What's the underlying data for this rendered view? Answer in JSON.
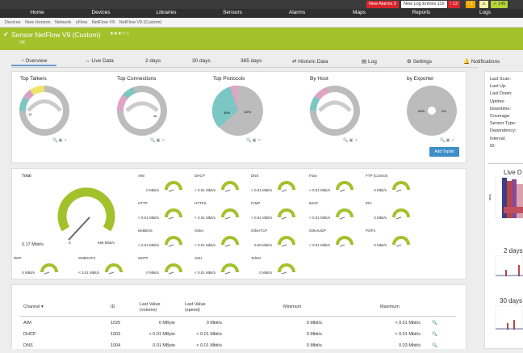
{
  "nav": {
    "items": [
      "Home",
      "Devices",
      "Libraries",
      "Sensors",
      "Alarms",
      "Maps",
      "Reports",
      "Logs"
    ]
  },
  "alarms": {
    "new_alarms_label": "New Alarms",
    "new_alarms_count": "2",
    "new_log_label": "New Log Entries",
    "new_log_count": "116",
    "red_count": "12",
    "yellow_count": "1",
    "green_count": "145"
  },
  "breadcrumb": [
    "Devices",
    "New Horizon",
    "Network",
    "sFlow",
    "NetFlow V9",
    "NetFlow V9 (Custom)"
  ],
  "sensor": {
    "title": "Sensor NetFlow V9 (Custom)",
    "status": "OK",
    "stars": "★★★☆☆",
    "accent": "#a3c12b"
  },
  "tabs": {
    "overview": "Overview",
    "live": "Live Data",
    "two_days": "2  days",
    "thirty_days": "30  days",
    "year": "365  days",
    "historic": "Historic Data",
    "log": "Log",
    "settings": "Settings",
    "notifications": "Notifications"
  },
  "toplists": {
    "top_talkers": "Top Talkers",
    "top_connections": "Top Connections",
    "top_protocols": "Top Protocols",
    "by_host": "By Host",
    "by_exporter": "by Exporter",
    "add_button": "Add Toplist",
    "pie_labels": {
      "talkers": "12",
      "connections": "4d",
      "protocols_a": "35%",
      "protocols_b": "62%",
      "exporter_a": "99%",
      "exporter_b": "0%"
    }
  },
  "side": {
    "labels": [
      "Last Scan:",
      "Last Up:",
      "Last Down:",
      "Uptime:",
      "Downtime:",
      "Coverage:",
      "Sensor Type:",
      "Dependency:",
      "Interval:",
      "ID:"
    ],
    "live_title": "Live D",
    "two_days": "2 days",
    "thirty_days": "30 days"
  },
  "gauges": {
    "total_label": "Total",
    "total_value": "0.17 Mbit/s",
    "total_min": "0",
    "total_max": "598 Mbit/s",
    "items": [
      {
        "name": "AIM",
        "value": "0 Mbit/s"
      },
      {
        "name": "DHCP",
        "value": "< 0.01 Mbit/s"
      },
      {
        "name": "DNS",
        "value": "< 0.01 Mbit/s"
      },
      {
        "name": "Flow",
        "value": "< 0.01 Mbit/s"
      },
      {
        "name": "FTP (Control)",
        "value": "0 Mbit/s"
      },
      {
        "name": "HTTP",
        "value": "< 0.01 Mbit/s"
      },
      {
        "name": "HTTPS",
        "value": "< 0.01 Mbit/s"
      },
      {
        "name": "ICMP",
        "value": "< 0.01 Mbit/s"
      },
      {
        "name": "IMAP",
        "value": "< 0.01 Mbit/s"
      },
      {
        "name": "IRC",
        "value": "0 Mbit/s"
      },
      {
        "name": "NetBIOS",
        "value": "< 0.01 Mbit/s"
      },
      {
        "name": "Other",
        "value": "< 0.01 Mbit/s"
      },
      {
        "name": "OtherTCP",
        "value": "0.08 Mbit/s"
      },
      {
        "name": "OtherUDP",
        "value": "< 0.01 Mbit/s"
      },
      {
        "name": "POP3",
        "value": "0 Mbit/s"
      },
      {
        "name": "RDP",
        "value": "0 Mbit/s"
      },
      {
        "name": "SMB/CIFS",
        "value": "< 0.01 Mbit/s"
      },
      {
        "name": "SMTP",
        "value": "0 Mbit/s"
      },
      {
        "name": "SSH",
        "value": "< 0.01 Mbit/s"
      },
      {
        "name": "Telnet",
        "value": "0 Mbit/s"
      }
    ]
  },
  "table": {
    "headers": {
      "channel": "Channel",
      "id": "ID",
      "last_volume": "Last Value (volume)",
      "last_speed": "Last Value (speed)",
      "minimum": "Minimum",
      "maximum": "Maximum"
    },
    "rows": [
      {
        "channel": "AIM",
        "id": "1025",
        "volume": "0 MByte",
        "speed": "0 Mbit/s",
        "min": "0 Mbit/s",
        "max": "< 0.01 Mbit/s"
      },
      {
        "channel": "DHCP",
        "id": "1003",
        "volume": "< 0.01 MByte",
        "speed": "< 0.01 Mbit/s",
        "min": "0 Mbit/s",
        "max": "< 0.01 Mbit/s"
      },
      {
        "channel": "DNS",
        "id": "1004",
        "volume": "0.01 MByte",
        "speed": "< 0.01 Mbit/s",
        "min": "0 Mbit/s",
        "max": "0.03 Mbit/s"
      }
    ]
  }
}
